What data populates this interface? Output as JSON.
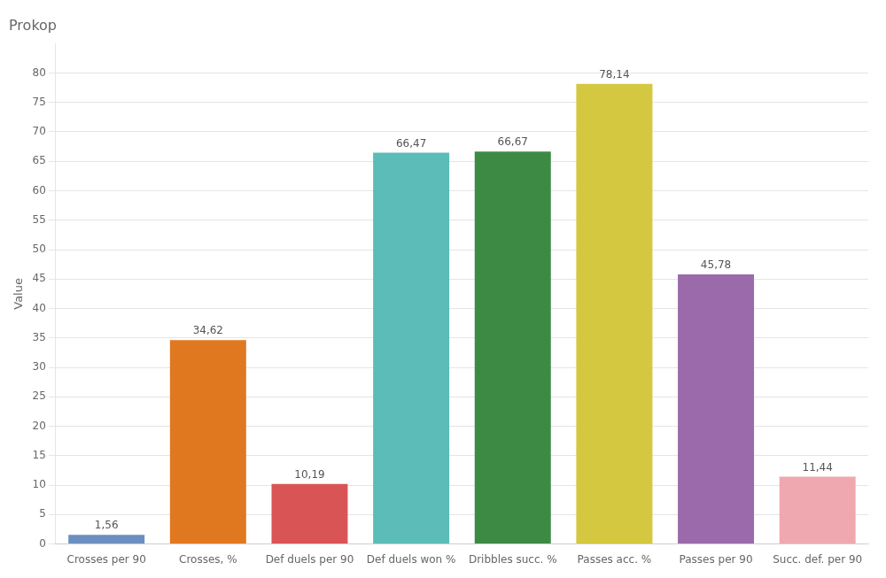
{
  "chart_data": {
    "type": "bar",
    "title": "Prokop",
    "ylabel": "Value",
    "categories": [
      "Crosses per 90",
      "Crosses, %",
      "Def duels per 90",
      "Def duels won %",
      "Dribbles succ. %",
      "Passes acc. %",
      "Passes per 90",
      "Succ. def. per 90"
    ],
    "values": [
      1.56,
      34.62,
      10.19,
      66.47,
      66.67,
      78.14,
      45.78,
      11.44
    ],
    "value_labels": [
      "1,56",
      "34,62",
      "10,19",
      "66,47",
      "66,67",
      "78,14",
      "45,78",
      "11,44"
    ],
    "colors": [
      "#6b8fc0",
      "#e07820",
      "#d95555",
      "#5bbcb8",
      "#3d8a45",
      "#d4c840",
      "#9b6aaa",
      "#f0a8b0"
    ],
    "ylim": [
      0,
      85
    ],
    "yticks": [
      0,
      5,
      10,
      15,
      20,
      25,
      30,
      35,
      40,
      45,
      50,
      55,
      60,
      65,
      70,
      75,
      80
    ],
    "grid": true,
    "data_labels": true
  }
}
